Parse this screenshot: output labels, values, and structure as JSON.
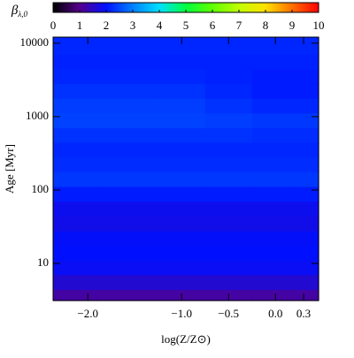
{
  "chart_data": {
    "type": "heatmap",
    "colorbar_label": "β",
    "colorbar_label_subscript": "λ,0",
    "xlabel": "log(Z/Z⊙)",
    "ylabel": "Age [Myr]",
    "x": [
      -2.2,
      -1.6,
      -1.0,
      -0.5,
      0.0,
      0.3
    ],
    "y": [
      3.5,
      5.6,
      8.9,
      14,
      22,
      35,
      56,
      89,
      141,
      224,
      355,
      562,
      891,
      1413,
      2239,
      3548,
      5623,
      8913
    ],
    "z": [
      [
        1.2,
        1.2,
        1.2,
        1.2,
        1.2,
        1.2
      ],
      [
        1.6,
        1.6,
        1.6,
        1.6,
        1.6,
        1.6
      ],
      [
        1.9,
        1.9,
        1.9,
        1.9,
        1.9,
        1.9
      ],
      [
        2.0,
        2.0,
        2.0,
        2.0,
        2.0,
        2.0
      ],
      [
        1.95,
        1.95,
        1.95,
        1.95,
        1.95,
        1.95
      ],
      [
        1.8,
        1.8,
        1.8,
        1.8,
        1.8,
        1.8
      ],
      [
        1.85,
        1.85,
        1.85,
        1.85,
        1.85,
        1.85
      ],
      [
        2.1,
        2.1,
        2.1,
        2.1,
        2.1,
        2.1
      ],
      [
        2.35,
        2.35,
        2.35,
        2.35,
        2.35,
        2.35
      ],
      [
        2.25,
        2.25,
        2.25,
        2.25,
        2.25,
        2.25
      ],
      [
        2.2,
        2.2,
        2.2,
        2.2,
        2.2,
        2.2
      ],
      [
        2.3,
        2.3,
        2.3,
        2.3,
        2.25,
        2.25
      ],
      [
        2.45,
        2.45,
        2.45,
        2.4,
        2.35,
        2.35
      ],
      [
        2.4,
        2.4,
        2.4,
        2.3,
        2.2,
        2.2
      ],
      [
        2.3,
        2.3,
        2.3,
        2.2,
        2.1,
        2.1
      ],
      [
        2.2,
        2.2,
        2.2,
        2.15,
        2.1,
        2.1
      ],
      [
        2.15,
        2.15,
        2.15,
        2.15,
        2.15,
        2.15
      ],
      [
        2.2,
        2.2,
        2.2,
        2.2,
        2.2,
        2.2
      ]
    ],
    "xlim": [
      -2.37,
      0.46
    ],
    "xticks": [
      {
        "value": -2.0,
        "label": "−2.0"
      },
      {
        "value": -1.0,
        "label": "−1.0"
      },
      {
        "value": -0.5,
        "label": "−0.5"
      },
      {
        "value": 0.0,
        "label": "0.0"
      },
      0.3
    ],
    "ylim": [
      3.12,
      12100
    ],
    "ylog": true,
    "yticks": [
      10,
      100,
      1000,
      10000
    ],
    "zlim": [
      0,
      10
    ],
    "zticks": [
      0,
      1,
      2,
      3,
      4,
      5,
      6,
      7,
      8,
      9,
      10
    ],
    "colorscale": [
      {
        "value": 0,
        "color": "#000000"
      },
      {
        "value": 1,
        "color": "#55008c"
      },
      {
        "value": 2,
        "color": "#0010ff"
      },
      {
        "value": 3,
        "color": "#0080ff"
      },
      {
        "value": 4,
        "color": "#00e0ff"
      },
      {
        "value": 5,
        "color": "#00ff40"
      },
      {
        "value": 6,
        "color": "#60ff00"
      },
      {
        "value": 7,
        "color": "#c0ff00"
      },
      {
        "value": 8,
        "color": "#ffe000"
      },
      {
        "value": 9,
        "color": "#ff7000"
      },
      {
        "value": 10,
        "color": "#ff0000"
      }
    ]
  }
}
